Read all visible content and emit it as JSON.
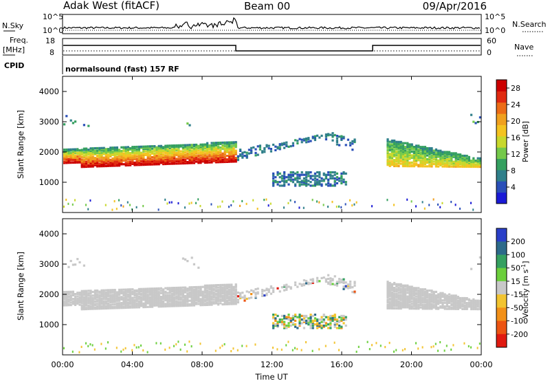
{
  "header": {
    "radar": "Adak West (fitACF)",
    "beam": "Beam 00",
    "date": "09/Apr/2016"
  },
  "info_panels": {
    "nsky_label": "N.Sky",
    "nsky_ticks": [
      "10^5",
      "10^0"
    ],
    "nsearch_label": "N.Search",
    "freq_label_1": "Freq.",
    "freq_label_2": "[MHz]",
    "freq_ticks": [
      "18",
      "8"
    ],
    "nave_label": "Nave",
    "nave_ticks": [
      "60",
      "0"
    ],
    "cpid_label": "CPID",
    "cpid_text": "normalsound (fast) 157 RF"
  },
  "chart_data": [
    {
      "type": "heatmap",
      "title": "",
      "xlabel": "Time UT",
      "ylabel": "Slant Range [km]",
      "x_ticks": [
        "00:00",
        "04:00",
        "08:00",
        "12:00",
        "16:00",
        "20:00",
        "00:00"
      ],
      "xlim_hours": [
        0,
        24
      ],
      "ylim_km": [
        0,
        4500
      ],
      "y_ticks": [
        1000,
        2000,
        3000,
        4000
      ],
      "colorbar": {
        "label": "Power [dB]",
        "ticks": [
          4,
          8,
          12,
          16,
          20,
          24,
          28
        ],
        "range": [
          0,
          30
        ],
        "colors": [
          "#1a1ad6",
          "#2a4fb8",
          "#2f7f8a",
          "#35a060",
          "#74c94a",
          "#c8d82c",
          "#f4c320",
          "#f0a01e",
          "#ec6c16",
          "#e02a10",
          "#cc0000"
        ]
      },
      "features": [
        {
          "name": "main-band",
          "start_h": 0.0,
          "end_h": 10.0,
          "range_km": [
            1450,
            2250
          ],
          "power_db": [
            8,
            28
          ]
        },
        {
          "name": "rising-band",
          "start_h": 10.0,
          "end_h": 15.0,
          "range_km": [
            1700,
            2550
          ],
          "power_db": [
            4,
            8
          ]
        },
        {
          "name": "falling-band",
          "start_h": 15.0,
          "end_h": 16.8,
          "range_km": [
            1900,
            2650
          ],
          "power_db": [
            4,
            8
          ]
        },
        {
          "name": "e-region-echo",
          "start_h": 12.0,
          "end_h": 16.3,
          "range_km": [
            850,
            1300
          ],
          "power_db": [
            4,
            8
          ]
        },
        {
          "name": "evening-band",
          "start_h": 18.5,
          "end_h": 24.0,
          "range_km": [
            1450,
            2450
          ],
          "power_db": [
            4,
            20
          ]
        }
      ]
    },
    {
      "type": "heatmap",
      "title": "",
      "xlabel": "Time UT",
      "ylabel": "Slant Range [km]",
      "x_ticks": [
        "00:00",
        "04:00",
        "08:00",
        "12:00",
        "16:00",
        "20:00",
        "00:00"
      ],
      "xlim_hours": [
        0,
        24
      ],
      "ylim_km": [
        0,
        4500
      ],
      "y_ticks": [
        1000,
        2000,
        3000,
        4000
      ],
      "colorbar": {
        "label": "Velocity [m s",
        "label_sup": "-1",
        "label_end": "]",
        "ticks": [
          "200",
          "100",
          "50",
          "15",
          "-15",
          "-50",
          "-100",
          "-200"
        ],
        "colors": [
          "#2a3fc8",
          "#2d6a8a",
          "#35a060",
          "#6ccf3c",
          "#c8c8c8",
          "#f2c430",
          "#f29018",
          "#ec5412",
          "#e01a10"
        ]
      },
      "features": [
        {
          "name": "main-band",
          "velocity": "near zero (ground scatter)"
        },
        {
          "name": "e-region-echo",
          "velocity": "-50 to 50"
        }
      ]
    }
  ]
}
